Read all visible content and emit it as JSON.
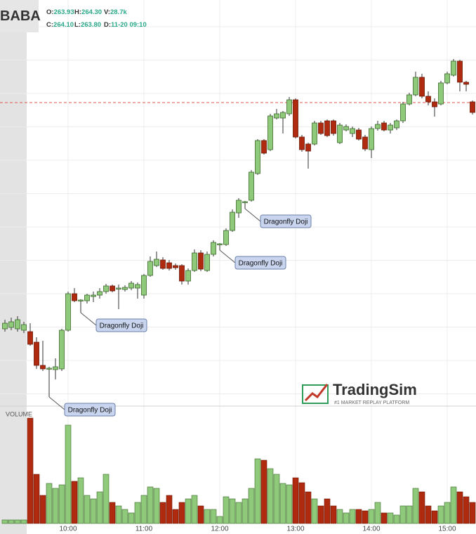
{
  "header": {
    "symbol": "BABA",
    "fields": [
      {
        "label": "O:",
        "value": "263.93"
      },
      {
        "label": "H:",
        "value": "264.30"
      },
      {
        "label": "V:",
        "value": "28.7k"
      },
      {
        "label": "C:",
        "value": "264.10"
      },
      {
        "label": "L:",
        "value": "263.80"
      },
      {
        "label": "D:",
        "value": "11-20 09:10"
      }
    ]
  },
  "watermark": {
    "title": "TradingSim",
    "subtitle": "#1 MARKET REPLAY PLATFORM"
  },
  "chart_data": {
    "type": "candlestick",
    "volume_label": "VOLUME",
    "categories": [
      null,
      null,
      null,
      null,
      null,
      null,
      null,
      null,
      null,
      null,
      "10:00",
      null,
      null,
      null,
      null,
      null,
      null,
      null,
      null,
      null,
      null,
      null,
      "11:00",
      null,
      null,
      null,
      null,
      null,
      null,
      null,
      null,
      null,
      null,
      null,
      "12:00",
      null,
      null,
      null,
      null,
      null,
      null,
      null,
      null,
      null,
      null,
      null,
      "13:00",
      null,
      null,
      null,
      null,
      null,
      null,
      null,
      null,
      null,
      null,
      null,
      "14:00",
      null,
      null,
      null,
      null,
      null,
      null,
      null,
      null,
      null,
      null,
      null,
      "15:00",
      null,
      null,
      null,
      null
    ],
    "open": [
      260.78,
      260.8,
      260.78,
      260.76,
      260.74,
      260.59,
      260.26,
      260.21,
      260.2,
      260.21,
      260.76,
      261.28,
      261.18,
      261.18,
      261.24,
      261.26,
      261.31,
      261.39,
      261.35,
      261.34,
      261.36,
      261.36,
      261.26,
      261.54,
      261.68,
      261.76,
      261.72,
      261.68,
      261.68,
      261.46,
      261.61,
      261.86,
      261.61,
      261.84,
      261.98,
      261.98,
      262.18,
      262.43,
      262.58,
      262.61,
      262.99,
      263.46,
      263.33,
      263.78,
      263.78,
      263.84,
      264.04,
      263.51,
      263.41,
      263.41,
      263.71,
      263.74,
      263.74,
      263.43,
      263.61,
      263.56,
      263.61,
      263.51,
      263.33,
      263.63,
      263.71,
      263.61,
      263.64,
      263.74,
      263.98,
      264.11,
      264.36,
      264.09,
      264.01,
      263.98,
      264.28,
      264.39,
      264.59,
      264.29,
      264.01
    ],
    "high": [
      260.91,
      260.94,
      260.96,
      260.88,
      260.86,
      260.66,
      260.61,
      260.24,
      260.36,
      260.78,
      261.31,
      261.36,
      261.2,
      261.28,
      261.31,
      261.36,
      261.42,
      261.41,
      261.41,
      261.4,
      261.46,
      261.44,
      261.56,
      261.81,
      261.88,
      261.8,
      261.76,
      261.71,
      261.7,
      261.64,
      261.91,
      261.9,
      261.88,
      262.04,
      262.0,
      262.21,
      262.48,
      262.64,
      262.6,
      263.04,
      263.48,
      263.48,
      263.84,
      263.91,
      263.88,
      264.08,
      264.06,
      263.54,
      263.43,
      263.74,
      263.74,
      263.76,
      263.76,
      263.71,
      263.69,
      263.66,
      263.64,
      263.54,
      263.66,
      263.74,
      263.74,
      263.71,
      263.76,
      264.01,
      264.14,
      264.44,
      264.41,
      264.16,
      264.06,
      264.31,
      264.44,
      264.62,
      264.61,
      264.31,
      264.03
    ],
    "low": [
      260.74,
      260.76,
      260.74,
      260.72,
      260.54,
      260.21,
      260.18,
      259.81,
      260.06,
      260.18,
      260.74,
      261.16,
      261.01,
      261.14,
      261.16,
      261.21,
      261.28,
      261.3,
      261.06,
      261.31,
      261.33,
      261.21,
      261.21,
      261.52,
      261.66,
      261.62,
      261.61,
      261.62,
      261.41,
      261.41,
      261.59,
      261.6,
      261.59,
      261.81,
      261.9,
      261.96,
      262.16,
      262.36,
      262.49,
      262.59,
      262.97,
      263.26,
      263.31,
      263.76,
      263.56,
      263.81,
      263.49,
      263.3,
      263.06,
      263.39,
      263.54,
      263.51,
      263.53,
      263.41,
      263.59,
      263.51,
      263.46,
      263.31,
      263.21,
      263.6,
      263.59,
      263.56,
      263.61,
      263.71,
      263.96,
      264.09,
      264.06,
      263.96,
      263.8,
      263.96,
      264.26,
      264.37,
      264.16,
      264.16,
      263.83
    ],
    "close": [
      260.86,
      260.88,
      260.91,
      260.84,
      260.56,
      260.26,
      260.21,
      260.22,
      260.24,
      260.76,
      261.28,
      261.18,
      261.19,
      261.26,
      261.26,
      261.31,
      261.39,
      261.32,
      261.36,
      261.37,
      261.43,
      261.41,
      261.54,
      261.74,
      261.77,
      261.64,
      261.64,
      261.65,
      261.46,
      261.61,
      261.86,
      261.63,
      261.84,
      262.01,
      261.99,
      262.18,
      262.44,
      262.61,
      262.59,
      263.01,
      263.46,
      263.28,
      263.81,
      263.84,
      263.86,
      264.04,
      263.51,
      263.33,
      263.31,
      263.71,
      263.56,
      263.53,
      263.56,
      263.68,
      263.66,
      263.63,
      263.48,
      263.34,
      263.63,
      263.69,
      263.61,
      263.68,
      263.74,
      263.98,
      264.11,
      264.36,
      264.09,
      264.01,
      263.94,
      264.28,
      264.41,
      264.59,
      264.29,
      264.26,
      263.86
    ],
    "volume": [
      5,
      5,
      5,
      5,
      150,
      70,
      40,
      57,
      50,
      55,
      140,
      60,
      65,
      40,
      35,
      45,
      70,
      30,
      25,
      20,
      15,
      30,
      40,
      52,
      50,
      30,
      40,
      20,
      30,
      35,
      40,
      25,
      20,
      20,
      10,
      38,
      35,
      30,
      35,
      50,
      92,
      90,
      78,
      70,
      57,
      55,
      65,
      58,
      45,
      35,
      25,
      35,
      25,
      20,
      15,
      20,
      20,
      18,
      20,
      30,
      15,
      15,
      12,
      25,
      25,
      50,
      45,
      25,
      18,
      25,
      30,
      52,
      45,
      38,
      30
    ],
    "patterns": [
      null,
      null,
      null,
      null,
      null,
      null,
      null,
      "Dragonfly Doji",
      null,
      null,
      null,
      null,
      "Dragonfly Doji",
      null,
      null,
      null,
      null,
      null,
      null,
      null,
      null,
      null,
      null,
      null,
      null,
      null,
      null,
      null,
      null,
      null,
      null,
      null,
      null,
      null,
      "Dragonfly Doji",
      null,
      null,
      null,
      "Dragonfly Doji",
      null,
      null,
      null,
      null,
      null,
      null,
      null,
      null,
      null,
      null,
      null,
      null,
      null,
      null,
      null,
      null,
      null,
      null,
      null,
      null,
      null,
      null,
      null,
      null,
      null,
      null,
      null,
      null,
      null,
      null,
      null,
      null,
      null,
      null,
      null,
      null
    ],
    "price_line": 264.0,
    "ylim": [
      259.68,
      265.46
    ],
    "volume_lim": [
      0,
      160
    ],
    "up_color": "#8fc97a",
    "down_color": "#b02a10",
    "price_line_color": "#e05a4a",
    "grid": true
  }
}
